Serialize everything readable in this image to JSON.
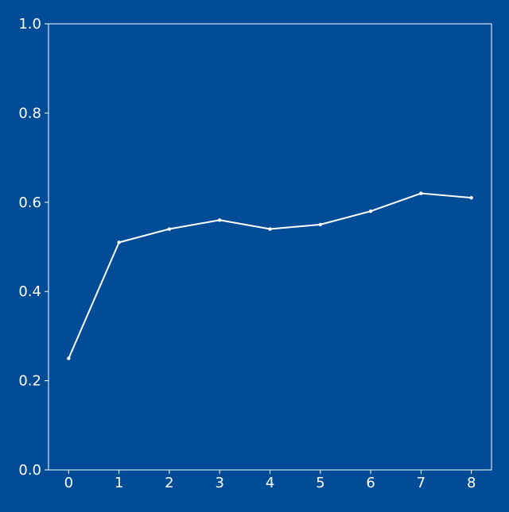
{
  "colors": {
    "background": "#004c97",
    "foreground": "#ffffff"
  },
  "chart_data": {
    "type": "line",
    "title": "",
    "xlabel": "",
    "ylabel": "",
    "xlim": [
      -0.4,
      8.4
    ],
    "ylim": [
      0.0,
      1.0
    ],
    "grid": false,
    "legend": "none",
    "x_ticks": [
      "0",
      "1",
      "2",
      "3",
      "4",
      "5",
      "6",
      "7",
      "8"
    ],
    "y_ticks": [
      "0.0",
      "0.2",
      "0.4",
      "0.6",
      "0.8",
      "1.0"
    ],
    "x_tick_values": [
      0,
      1,
      2,
      3,
      4,
      5,
      6,
      7,
      8
    ],
    "y_tick_values": [
      0.0,
      0.2,
      0.4,
      0.6,
      0.8,
      1.0
    ],
    "series": [
      {
        "x": [
          0,
          1,
          2,
          3,
          4,
          5,
          6,
          7,
          8
        ],
        "values": [
          0.25,
          0.51,
          0.54,
          0.56,
          0.54,
          0.55,
          0.58,
          0.62,
          0.61
        ],
        "color": "#ffffff",
        "marker": "dot"
      }
    ]
  }
}
